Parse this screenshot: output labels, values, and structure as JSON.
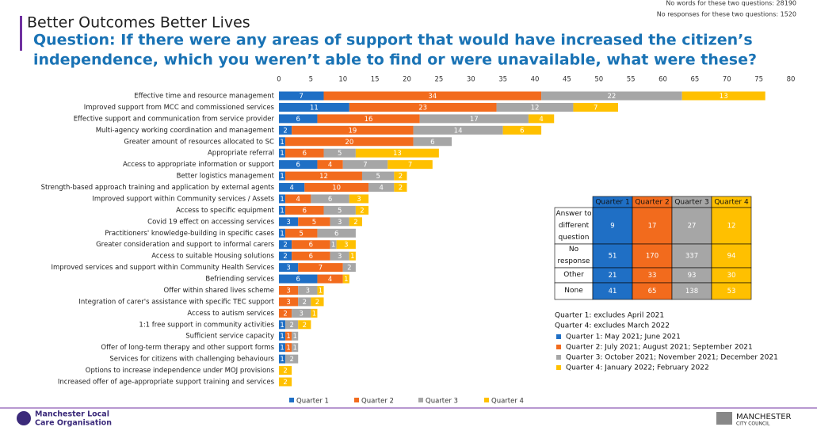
{
  "header": {
    "title": "Better Outcomes Better Lives",
    "question": [
      "Question:  If there were any areas of support that would have increased the citizen’s",
      "independence, which you weren’t able to find or were unavailable, what were these?"
    ],
    "stats": [
      "No words for these two questions: 28190",
      "No responses for these two questions: 1520"
    ]
  },
  "chart_data": {
    "type": "bar",
    "orientation": "horizontal",
    "stacked": true,
    "categories": [
      "Effective time and resource management",
      "Improved support from MCC and commissioned services",
      "Effective support and communication from service provider",
      "Multi-agency working coordination and management",
      "Greater amount of resources allocated to SC",
      "Appropriate referral",
      "Access to appropriate information or support",
      "Better logistics management",
      "Strength-based approach training and application by external agents",
      "Improved support within Community services / Assets",
      "Access to specific equipment",
      "Covid 19 effect on accessing services",
      "Practitioners' knowledge-building in specific cases",
      "Greater consideration and support to informal carers",
      "Access to suitable Housing solutions",
      "Improved services and support within Community Health Services",
      "Befriending services",
      "Offer within shared lives scheme",
      "Integration of carer's assistance with specific TEC support",
      "Access to autism services",
      "1:1 free support in community activities",
      "Sufficient service capacity",
      "Offer of long-term therapy and other support forms",
      "Services for citizens with challenging behaviours",
      "Options to increase independence under MOJ provisions",
      "Increased offer of age-appropriate support training and services"
    ],
    "series": [
      {
        "name": "Quarter 1",
        "color": "#1f6fc5",
        "values": [
          7,
          11,
          6,
          2,
          1,
          1,
          6,
          1,
          4,
          1,
          1,
          3,
          1,
          2,
          2,
          3,
          6,
          null,
          null,
          null,
          1,
          1,
          1,
          1,
          null,
          null
        ]
      },
      {
        "name": "Quarter 2",
        "color": "#f26b1d",
        "values": [
          34,
          23,
          16,
          19,
          20,
          6,
          4,
          12,
          10,
          4,
          6,
          5,
          5,
          6,
          6,
          7,
          4,
          3,
          3,
          2,
          null,
          1,
          1,
          null,
          null,
          null
        ]
      },
      {
        "name": "Quarter 3",
        "color": "#a6a6a6",
        "values": [
          22,
          12,
          17,
          14,
          6,
          5,
          7,
          5,
          4,
          6,
          5,
          3,
          6,
          1,
          3,
          2,
          null,
          3,
          2,
          3,
          2,
          1,
          1,
          2,
          null,
          null
        ]
      },
      {
        "name": "Quarter 4",
        "color": "#ffc000",
        "values": [
          13,
          7,
          4,
          6,
          null,
          13,
          7,
          2,
          2,
          3,
          2,
          2,
          null,
          3,
          1,
          null,
          1,
          1,
          2,
          1,
          2,
          null,
          null,
          null,
          2,
          2
        ]
      }
    ],
    "xlim": [
      0,
      80
    ],
    "xticks": [
      0,
      5,
      10,
      15,
      20,
      25,
      30,
      35,
      40,
      45,
      50,
      55,
      60,
      65,
      70,
      75,
      80
    ],
    "legend": "bottom"
  },
  "table": {
    "columns": [
      "Quarter 1",
      "Quarter 2",
      "Quarter 3",
      "Quarter 4"
    ],
    "rows": [
      [
        "Answer to different question",
        9,
        17,
        27,
        12
      ],
      [
        "No response",
        51,
        170,
        337,
        94
      ],
      [
        "Other",
        21,
        33,
        93,
        30
      ],
      [
        "None",
        41,
        65,
        138,
        53
      ]
    ]
  },
  "notes": [
    "Quarter 1: excludes April 2021",
    "Quarter 4: excludes March 2022"
  ],
  "quarter_notes": [
    {
      "text": "Quarter 1: May 2021; June 2021",
      "color": "#1f6fc5"
    },
    {
      "text": "Quarter 2: July 2021; August 2021; September 2021",
      "color": "#f26b1d"
    },
    {
      "text": "Quarter 3: October 2021; November 2021; December 2021",
      "color": "#a6a6a6"
    },
    {
      "text": "Quarter 4: January 2022; February 2022",
      "color": "#ffc000"
    }
  ],
  "footer": {
    "left": [
      "Manchester Local",
      "Care Organisation"
    ],
    "right": [
      "MANCHESTER",
      "CITY COUNCIL"
    ]
  }
}
